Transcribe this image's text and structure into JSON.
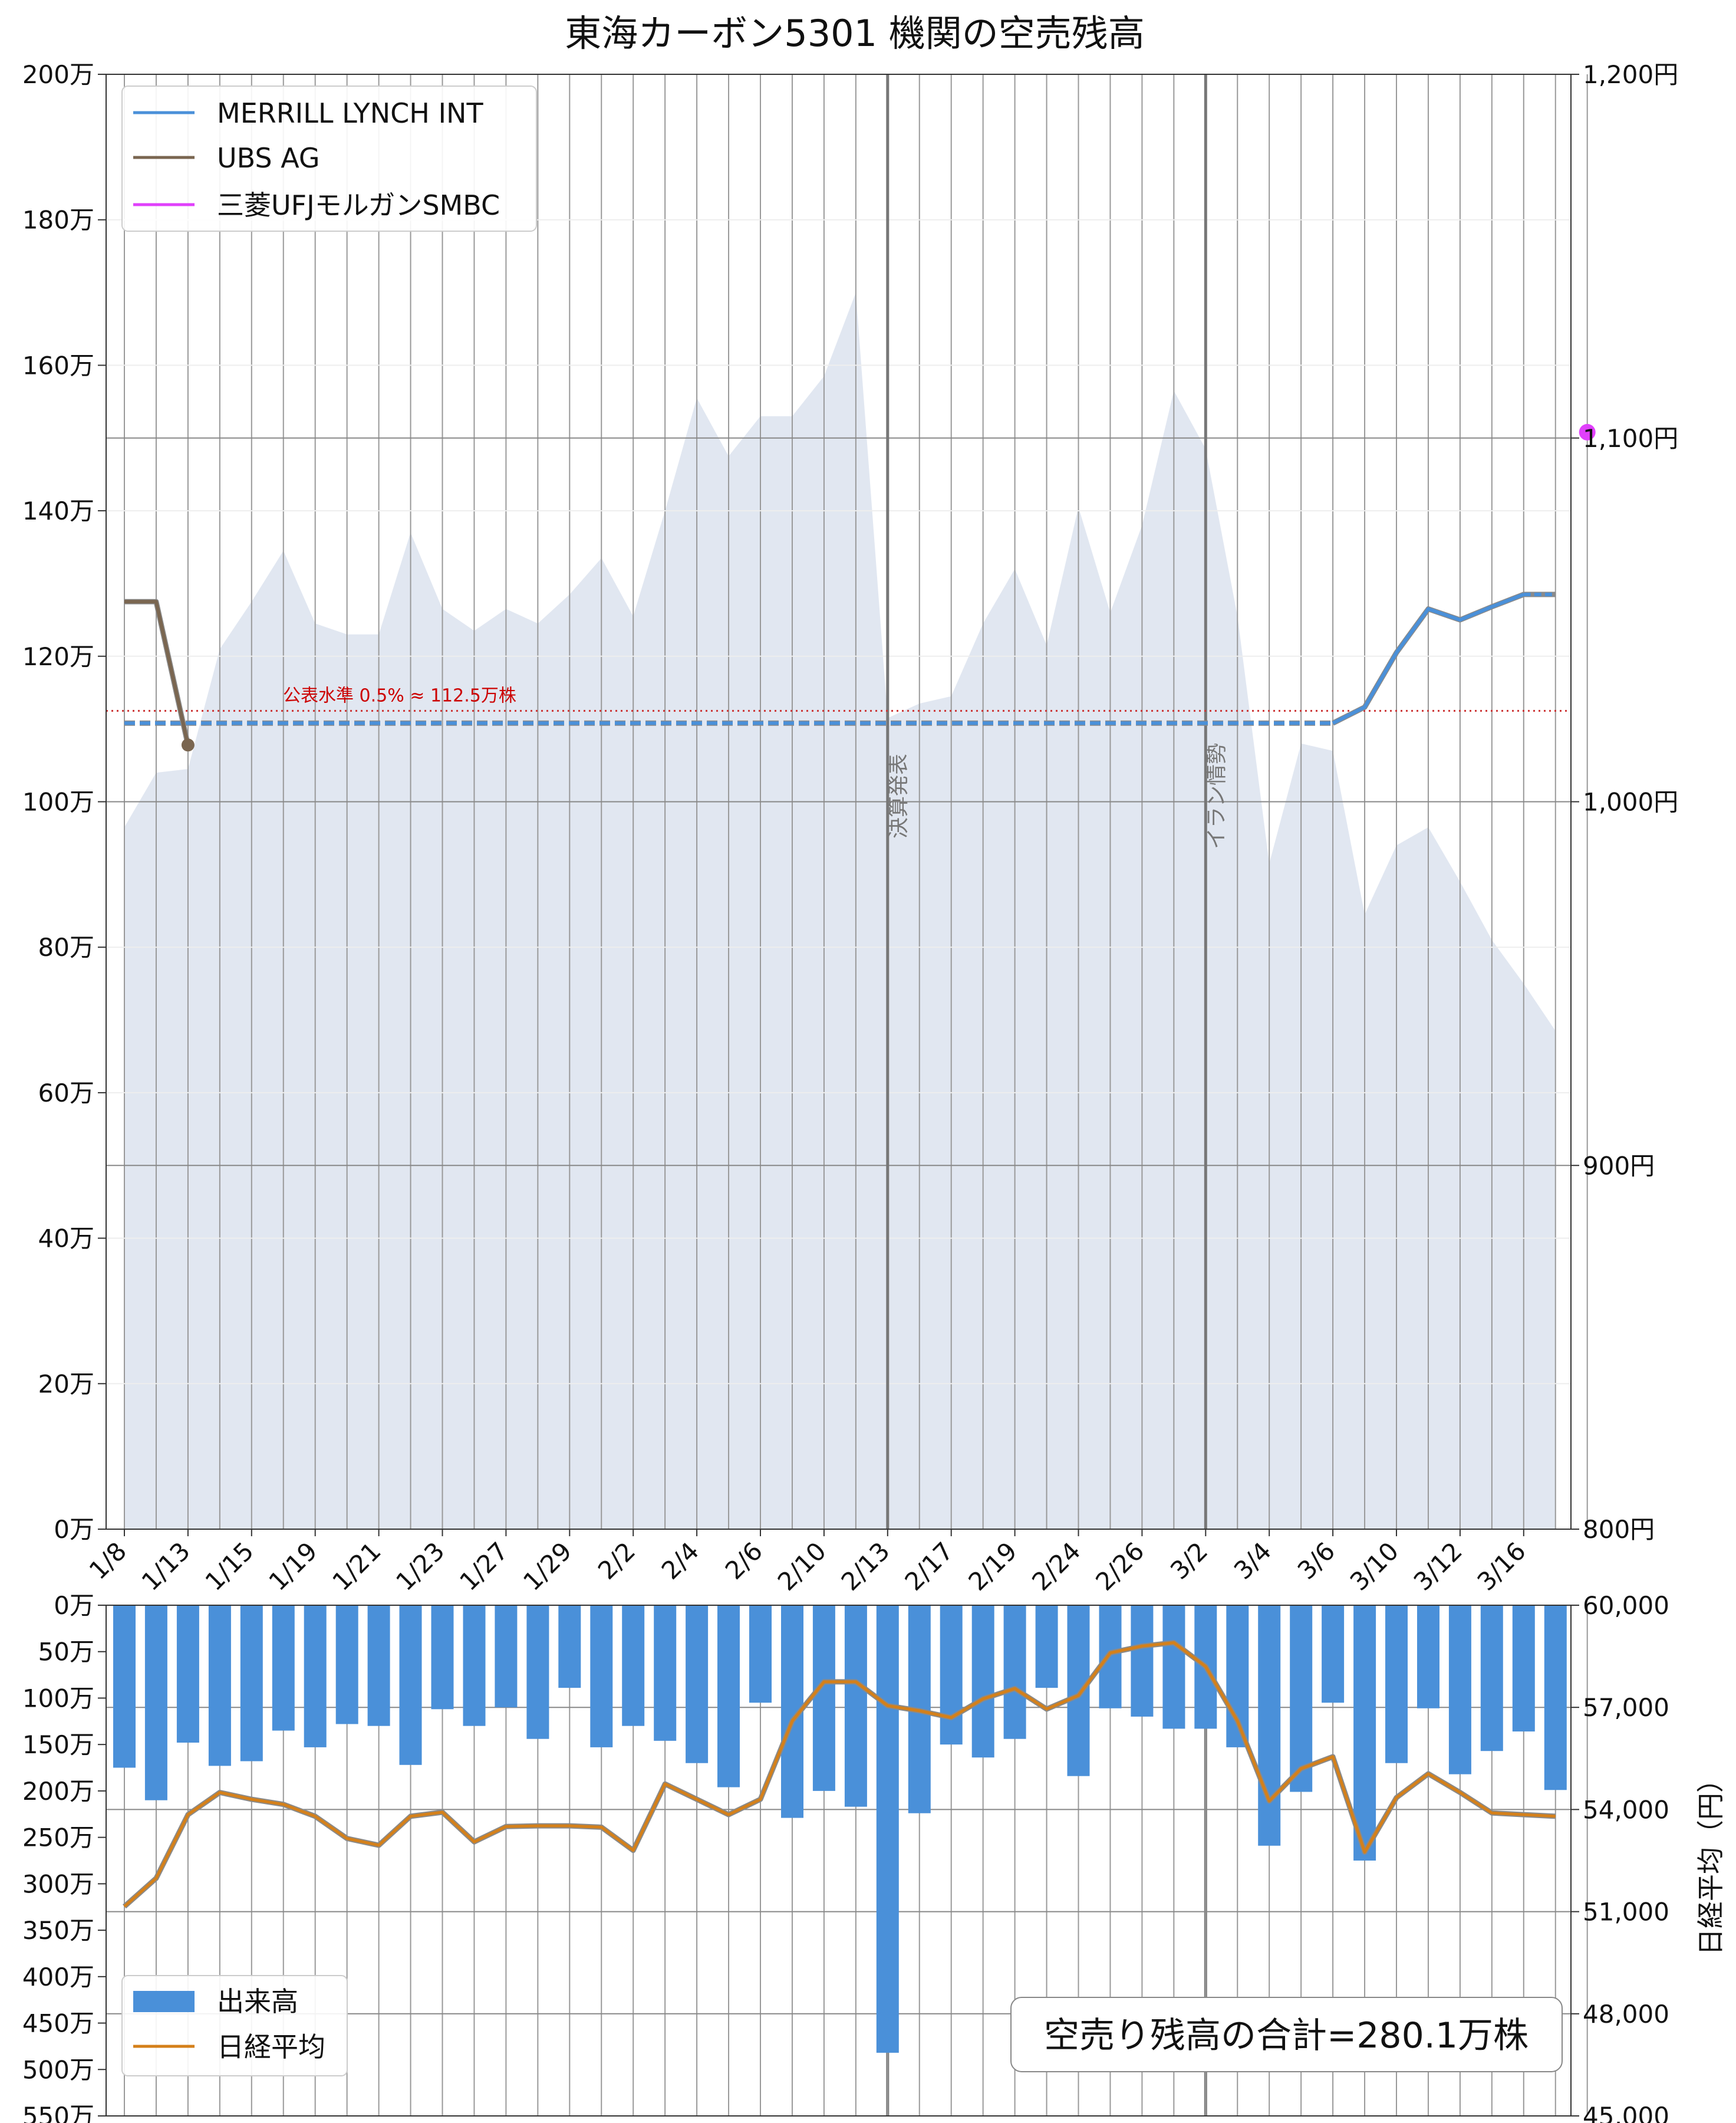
{
  "chart_data": [
    {
      "type": "line",
      "title": "東海カーボン5301 機関の空売残高",
      "xlabel": "",
      "ylabel": "",
      "ylim": [
        0,
        2000000
      ],
      "y_tick_labels": [
        "0万",
        "20万",
        "40万",
        "60万",
        "80万",
        "100万",
        "120万",
        "140万",
        "160万",
        "180万",
        "200万"
      ],
      "y2lim": [
        800,
        1200
      ],
      "y2_tick_labels": [
        "800円",
        "900円",
        "1,000円",
        "1,100円",
        "1,200円"
      ],
      "x_dates": [
        "1/8",
        "1/9",
        "1/13",
        "1/14",
        "1/15",
        "1/16",
        "1/19",
        "1/20",
        "1/21",
        "1/22",
        "1/23",
        "1/26",
        "1/27",
        "1/28",
        "1/29",
        "1/30",
        "2/2",
        "2/3",
        "2/4",
        "2/5",
        "2/6",
        "2/9",
        "2/10",
        "2/12",
        "2/13",
        "2/16",
        "2/17",
        "2/18",
        "2/19",
        "2/20",
        "2/24",
        "2/25",
        "2/26",
        "2/27",
        "3/2",
        "3/3",
        "3/4",
        "3/5",
        "3/6",
        "3/9",
        "3/10",
        "3/11",
        "3/12",
        "3/13",
        "3/16",
        "3/17",
        "3/18"
      ],
      "x_tick_labels": [
        "1/8",
        "1/13",
        "1/15",
        "1/19",
        "1/21",
        "1/23",
        "1/27",
        "1/29",
        "2/2",
        "2/4",
        "2/6",
        "2/10",
        "2/13",
        "2/17",
        "2/19",
        "2/24",
        "2/26",
        "3/2",
        "3/4",
        "3/6",
        "3/10",
        "3/12",
        "3/16"
      ],
      "price_area": {
        "name": "株価",
        "values": [
          993,
          1008,
          1009,
          1042,
          1055,
          1069,
          1049,
          1046,
          1046,
          1074,
          1053,
          1047,
          1053,
          1049,
          1057,
          1067,
          1051,
          1080,
          1111,
          1095,
          1106,
          1106,
          1117,
          1140,
          1023,
          1027,
          1029,
          1049,
          1064,
          1043,
          1081,
          1052,
          1076,
          1113,
          1097,
          1051,
          983,
          1016,
          1014,
          969,
          988,
          993,
          978,
          962,
          950,
          937
        ]
      },
      "series": [
        {
          "name": "MERRILL LYNCH INT",
          "color": "#4a90d9",
          "solid_from_index": 38,
          "values": [
            1108000,
            1108000,
            1108000,
            1108000,
            1108000,
            1108000,
            1108000,
            1108000,
            1108000,
            1108000,
            1108000,
            1108000,
            1108000,
            1108000,
            1108000,
            1108000,
            1108000,
            1108000,
            1108000,
            1108000,
            1108000,
            1108000,
            1108000,
            1108000,
            1108000,
            1108000,
            1108000,
            1108000,
            1108000,
            1108000,
            1108000,
            1108000,
            1108000,
            1108000,
            1108000,
            1108000,
            1108000,
            1108000,
            1108000,
            1130000,
            1205000,
            1265000,
            1250000,
            1268000,
            1285000,
            1285000
          ]
        },
        {
          "name": "UBS AG",
          "color": "#7a6650",
          "values": [
            1275000,
            1275000,
            1078000
          ]
        },
        {
          "name": "三菱UFJモルガンSMBC",
          "color": "#e040fb",
          "values": [
            1508000
          ],
          "x_index": 46
        }
      ],
      "threshold": {
        "value": 1125000,
        "label": "公表水準 0.5% ≈ 112.5万株"
      },
      "events": [
        {
          "index": 24,
          "label": "決算発表"
        },
        {
          "index": 34,
          "label": "イラン情勢"
        }
      ]
    },
    {
      "type": "bar",
      "ylim": [
        0,
        5500000
      ],
      "y_tick_labels": [
        "0万",
        "50万",
        "100万",
        "150万",
        "200万",
        "250万",
        "300万",
        "350万",
        "400万",
        "450万",
        "500万",
        "550万"
      ],
      "y2label": "日経平均（円）",
      "y2lim": [
        45000,
        60000
      ],
      "y2_tick_labels": [
        "45,000",
        "48,000",
        "51,000",
        "54,000",
        "57,000",
        "60,000"
      ],
      "series": [
        {
          "name": "出来高",
          "color": "#4a90d9",
          "values": [
            1750000,
            2100000,
            1480000,
            1730000,
            1680000,
            1350000,
            1530000,
            1280000,
            1300000,
            1720000,
            1120000,
            1300000,
            1100000,
            1440000,
            890000,
            1530000,
            1300000,
            1460000,
            1700000,
            1960000,
            1050000,
            2290000,
            2000000,
            2170000,
            4820000,
            2240000,
            1500000,
            1640000,
            1440000,
            890000,
            1840000,
            1110000,
            1200000,
            1330000,
            1330000,
            1530000,
            2590000,
            2010000,
            1050000,
            2750000,
            1700000,
            1110000,
            1820000,
            1570000,
            1360000,
            1990000
          ]
        },
        {
          "name": "日経平均",
          "color": "#d4801a",
          "values": [
            51150,
            51980,
            53850,
            54500,
            54300,
            54150,
            53800,
            53150,
            52950,
            53800,
            53920,
            53050,
            53500,
            53520,
            53520,
            53480,
            52800,
            54750,
            54300,
            53850,
            54300,
            56600,
            57750,
            57750,
            57050,
            56900,
            56700,
            57250,
            57550,
            56950,
            57350,
            58600,
            58800,
            58900,
            58200,
            56600,
            54250,
            55200,
            55550,
            52750,
            54350,
            55050,
            54500,
            53900,
            53850,
            53800
          ]
        }
      ],
      "annotation": "空売り残高の合計=280.1万株"
    }
  ]
}
